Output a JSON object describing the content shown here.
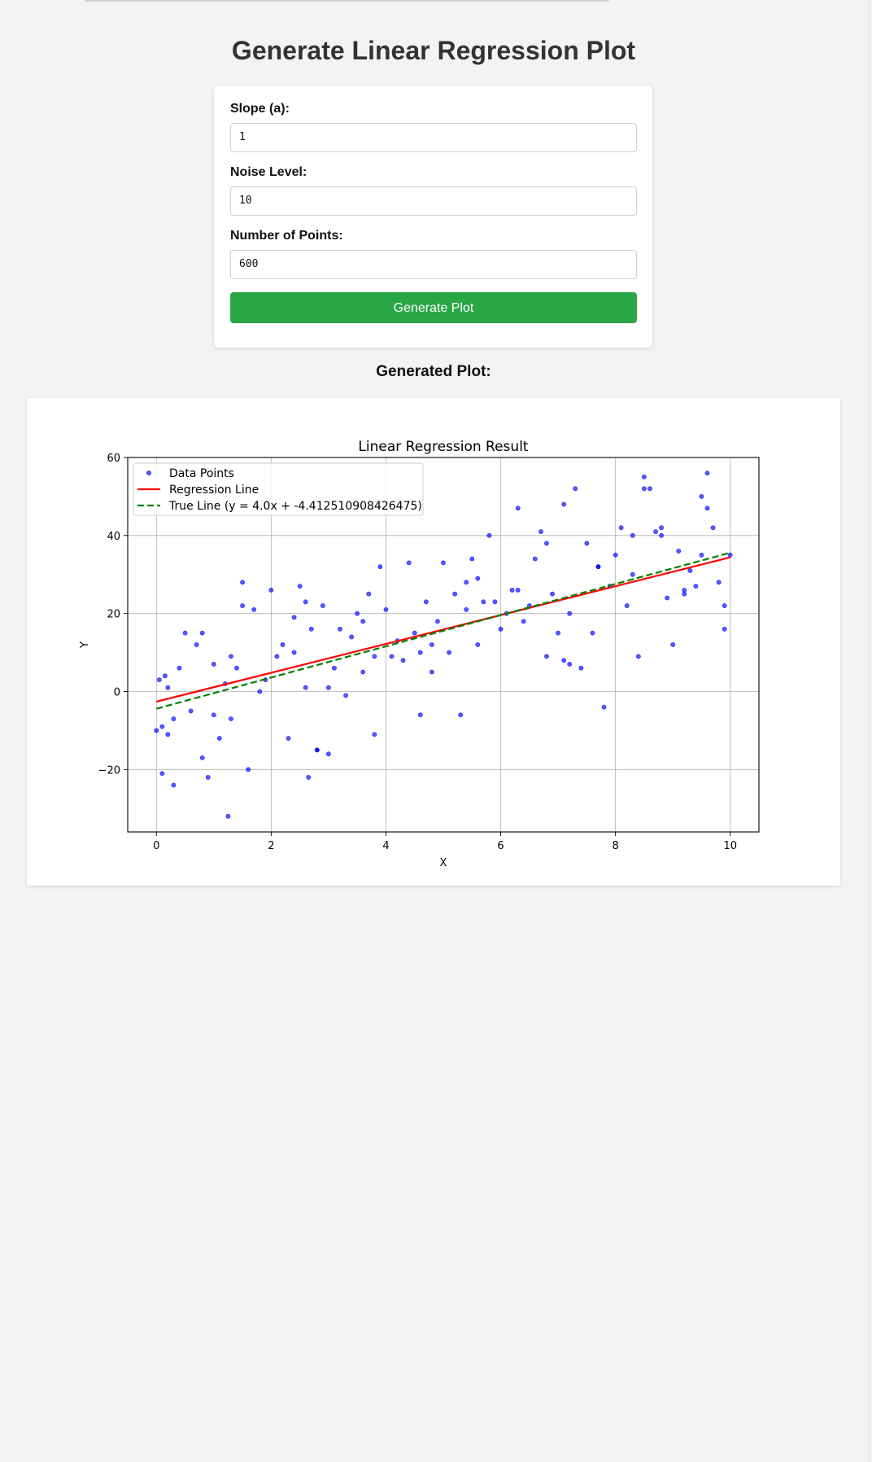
{
  "page": {
    "title": "Generate Linear Regression Plot"
  },
  "form": {
    "slope_label": "Slope (a):",
    "slope_value": "1",
    "noise_label": "Noise Level:",
    "noise_value": "10",
    "points_label": "Number of Points:",
    "points_value": "600",
    "button_label": "Generate Plot"
  },
  "result": {
    "heading": "Generated Plot:"
  },
  "colors": {
    "button": "#28a745",
    "points": "#0000ff",
    "regression_line": "#ff0000",
    "true_line": "#008000"
  },
  "chart_data": {
    "type": "scatter",
    "title": "Linear Regression Result",
    "xlabel": "X",
    "ylabel": "Y",
    "xlim": [
      -0.5,
      10.5
    ],
    "ylim": [
      -36,
      60
    ],
    "xticks": [
      0,
      2,
      4,
      6,
      8,
      10
    ],
    "yticks": [
      -20,
      0,
      20,
      40,
      60
    ],
    "xtick_labels": [
      "0",
      "2",
      "4",
      "6",
      "8",
      "10"
    ],
    "ytick_labels": [
      "−20",
      "0",
      "20",
      "40",
      "60"
    ],
    "grid": true,
    "legend_position": "top-left",
    "series": [
      {
        "name": "Data Points",
        "kind": "scatter",
        "x": [
          0.0,
          0.05,
          0.1,
          0.15,
          0.2,
          0.3,
          0.4,
          0.5,
          0.6,
          0.7,
          0.8,
          0.9,
          1.0,
          1.1,
          1.2,
          1.25,
          1.3,
          1.4,
          1.5,
          1.6,
          1.7,
          1.8,
          1.9,
          2.0,
          2.1,
          2.2,
          2.3,
          2.4,
          2.5,
          2.6,
          2.65,
          2.7,
          2.8,
          2.9,
          3.0,
          3.1,
          3.2,
          3.3,
          3.4,
          3.5,
          3.6,
          3.7,
          3.8,
          3.9,
          4.0,
          4.1,
          4.2,
          4.3,
          4.4,
          4.5,
          4.6,
          4.7,
          4.8,
          4.9,
          5.0,
          5.1,
          5.2,
          5.3,
          5.4,
          5.5,
          5.6,
          5.7,
          5.8,
          5.9,
          6.0,
          6.1,
          6.2,
          6.3,
          6.4,
          6.5,
          6.6,
          6.7,
          6.8,
          6.9,
          7.0,
          7.1,
          7.2,
          7.3,
          7.4,
          7.5,
          7.6,
          7.7,
          7.8,
          7.9,
          8.0,
          8.1,
          8.2,
          8.3,
          8.4,
          8.5,
          8.6,
          8.7,
          8.8,
          8.9,
          9.0,
          9.1,
          9.2,
          9.3,
          9.4,
          9.5,
          9.6,
          9.7,
          9.8,
          9.9,
          10.0,
          0.1,
          0.3,
          0.8,
          1.0,
          1.5,
          2.6,
          2.8,
          3.0,
          3.8,
          4.6,
          5.4,
          6.3,
          7.2,
          7.7,
          8.5,
          8.8,
          9.5,
          9.6,
          9.9,
          0.2,
          1.3,
          2.4,
          3.6,
          4.8,
          5.6,
          6.8,
          7.1,
          8.3,
          9.2
        ],
        "y": [
          -10,
          3,
          -21,
          4,
          1,
          -24,
          6,
          15,
          -5,
          12,
          15,
          -22,
          7,
          -12,
          2,
          -32,
          9,
          6,
          28,
          -20,
          21,
          0,
          3,
          26,
          9,
          12,
          -12,
          19,
          27,
          1,
          -22,
          16,
          -15,
          22,
          -16,
          6,
          16,
          -1,
          14,
          20,
          5,
          25,
          -11,
          32,
          21,
          9,
          13,
          8,
          33,
          15,
          -6,
          23,
          5,
          18,
          33,
          10,
          25,
          -6,
          28,
          34,
          12,
          23,
          40,
          23,
          16,
          20,
          26,
          47,
          18,
          22,
          34,
          41,
          9,
          25,
          15,
          48,
          7,
          52,
          6,
          38,
          15,
          32,
          -4,
          27,
          35,
          42,
          22,
          30,
          9,
          55,
          52,
          41,
          40,
          24,
          12,
          36,
          26,
          31,
          27,
          35,
          56,
          42,
          28,
          22,
          35,
          -9,
          -7,
          -17,
          -6,
          22,
          23,
          -15,
          1,
          9,
          10,
          21,
          26,
          20,
          32,
          52,
          42,
          50,
          47,
          16,
          -11,
          -7,
          10,
          18,
          12,
          29,
          38,
          8,
          40,
          25
        ]
      },
      {
        "name": "Regression Line",
        "kind": "line",
        "x": [
          0,
          10
        ],
        "y": [
          -2.6,
          34.4
        ]
      },
      {
        "name": "True Line (y = 4.0x + -4.412510908426475)",
        "kind": "dashed-line",
        "x": [
          0,
          10
        ],
        "y": [
          -4.412510908426475,
          35.587489091573524
        ]
      }
    ]
  }
}
